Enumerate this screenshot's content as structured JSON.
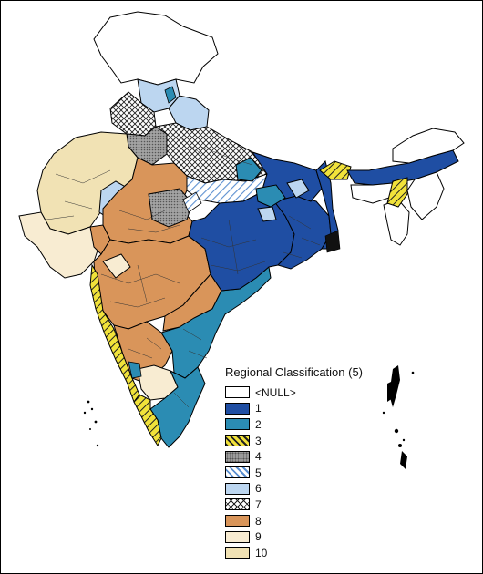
{
  "legend": {
    "title": "Regional Classification (5)",
    "entries": [
      {
        "label": "<NULL>",
        "color": "#ffffff",
        "pattern": "none"
      },
      {
        "label": "1",
        "color": "#1f4ea3",
        "pattern": "none"
      },
      {
        "label": "2",
        "color": "#2b8cb3",
        "pattern": "none"
      },
      {
        "label": "3",
        "color": "#f1e23a",
        "pattern": "diagonal-hatch-dark"
      },
      {
        "label": "4",
        "color": "#9a9a9a",
        "pattern": "dots"
      },
      {
        "label": "5",
        "color": "#ffffff",
        "pattern": "diagonal-hatch-blue"
      },
      {
        "label": "6",
        "color": "#bcd6f0",
        "pattern": "none"
      },
      {
        "label": "7",
        "color": "#ffffff",
        "pattern": "crosshatch"
      },
      {
        "label": "8",
        "color": "#d9955a",
        "pattern": "none"
      },
      {
        "label": "9",
        "color": "#f8ecd2",
        "pattern": "none"
      },
      {
        "label": "10",
        "color": "#f1e2b4",
        "pattern": "none"
      }
    ]
  }
}
